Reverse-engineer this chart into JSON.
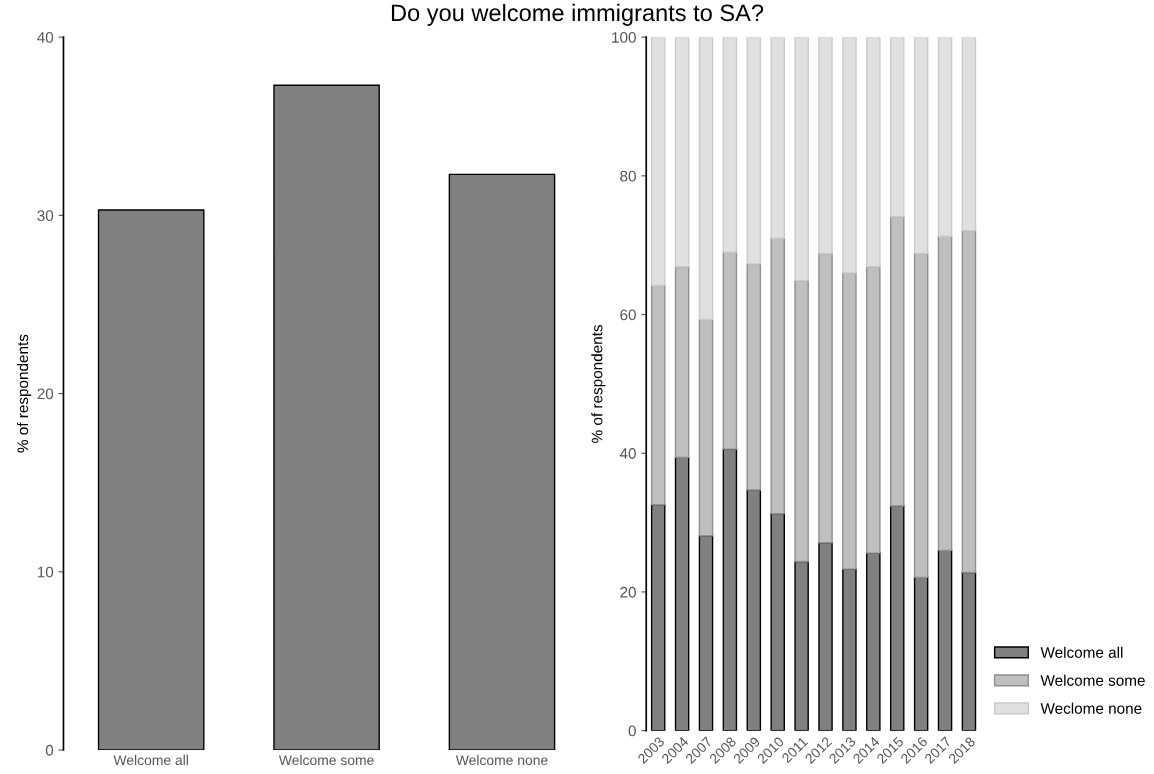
{
  "chart_data": [
    {
      "type": "bar",
      "title": "Do you welcome immigrants to SA?",
      "ylabel": "% of respondents",
      "categories": [
        "Welcome all",
        "Welcome some",
        "Welcome none"
      ],
      "values": [
        30.3,
        37.3,
        32.3
      ],
      "color": "#808080",
      "ylim": [
        0,
        40
      ],
      "yticks": [
        0,
        10,
        20,
        30,
        40
      ],
      "grid": false,
      "legend": false
    },
    {
      "type": "bar",
      "stacked": true,
      "ylabel": "% of respondents",
      "categories": [
        "2003",
        "2004",
        "2007",
        "2008",
        "2009",
        "2010",
        "2011",
        "2012",
        "2013",
        "2014",
        "2015",
        "2016",
        "2017",
        "2018"
      ],
      "series": [
        {
          "name": "Welcome all",
          "color": "#808080",
          "values": [
            32.6,
            39.4,
            28.1,
            40.6,
            34.7,
            31.3,
            24.4,
            27.1,
            23.3,
            25.6,
            32.4,
            22.1,
            26.0,
            22.8
          ]
        },
        {
          "name": "Welcome some",
          "color": "#bfbfbf",
          "values": [
            31.6,
            27.5,
            31.2,
            28.4,
            32.6,
            39.7,
            40.5,
            41.7,
            42.7,
            41.3,
            41.7,
            46.7,
            45.3,
            49.3
          ]
        },
        {
          "name": "Weclome none",
          "color": "#e0e0e0",
          "values": [
            35.8,
            33.1,
            40.7,
            31.0,
            32.7,
            29.0,
            35.1,
            31.2,
            34.0,
            33.1,
            25.9,
            31.2,
            28.7,
            27.9
          ]
        }
      ],
      "ylim": [
        0,
        100
      ],
      "yticks": [
        0,
        20,
        40,
        60,
        80,
        100
      ],
      "grid": false,
      "legend": "bottom right"
    }
  ]
}
